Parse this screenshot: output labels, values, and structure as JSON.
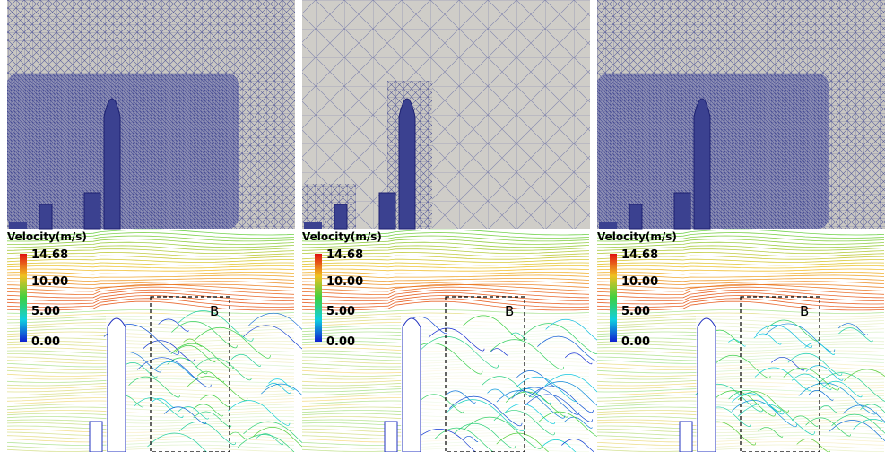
{
  "panels": [
    {
      "legend": {
        "title": "Velocity(m/s)",
        "ticks": [
          "14.68",
          "10.00",
          "5.00",
          "0.00"
        ]
      },
      "box_label": "B"
    },
    {
      "legend": {
        "title": "Velocity(m/s)",
        "ticks": [
          "14.68",
          "10.00",
          "5.00",
          "0.00"
        ]
      },
      "box_label": "B"
    },
    {
      "legend": {
        "title": "Velocity(m/s)",
        "ticks": [
          "14.68",
          "10.00",
          "5.00",
          "0.00"
        ]
      },
      "box_label": "B"
    }
  ]
}
